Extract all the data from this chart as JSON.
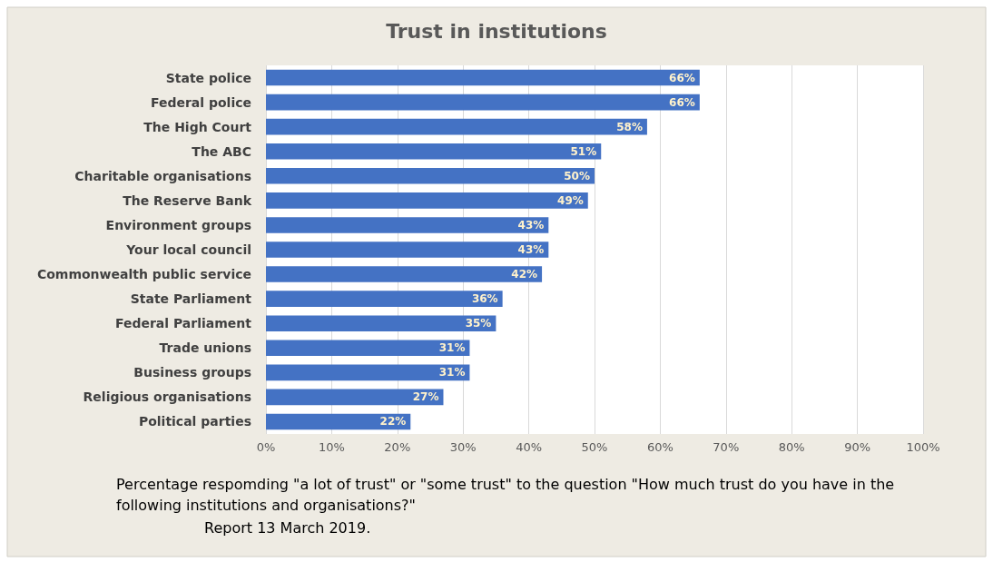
{
  "chart_data": {
    "type": "bar",
    "orientation": "horizontal",
    "title": "Trust in institutions",
    "categories": [
      "State police",
      "Federal police",
      "The High Court",
      "The ABC",
      "Charitable organisations",
      "The Reserve Bank",
      "Environment groups",
      "Your local council",
      "Commonwealth public service",
      "State Parliament",
      "Federal Parliament",
      "Trade unions",
      "Business groups",
      "Religious organisations",
      "Political parties"
    ],
    "values": [
      66,
      66,
      58,
      51,
      50,
      49,
      43,
      43,
      42,
      36,
      35,
      31,
      31,
      27,
      22
    ],
    "value_labels": [
      "66%",
      "66%",
      "58%",
      "51%",
      "50%",
      "49%",
      "43%",
      "43%",
      "42%",
      "36%",
      "35%",
      "31%",
      "31%",
      "27%",
      "22%"
    ],
    "color": "#4472c4",
    "xlim": [
      0,
      100
    ],
    "xticks": [
      {
        "value": 0,
        "label": "0%"
      },
      {
        "value": 10,
        "label": "10%"
      },
      {
        "value": 20,
        "label": "20%"
      },
      {
        "value": 30,
        "label": "30%"
      },
      {
        "value": 40,
        "label": "40%"
      },
      {
        "value": 50,
        "label": "50%"
      },
      {
        "value": 60,
        "label": "60%"
      },
      {
        "value": 70,
        "label": "70%"
      },
      {
        "value": 80,
        "label": "80%"
      },
      {
        "value": 90,
        "label": "90%"
      },
      {
        "value": 100,
        "label": "100%"
      }
    ],
    "grid": "x",
    "annotations": [
      "Percentage respomding \"a lot of trust\" or \"some trust\" to the question \"How much trust do you have in the following institutions and organisations?\"",
      "Report 13 March 2019."
    ]
  }
}
